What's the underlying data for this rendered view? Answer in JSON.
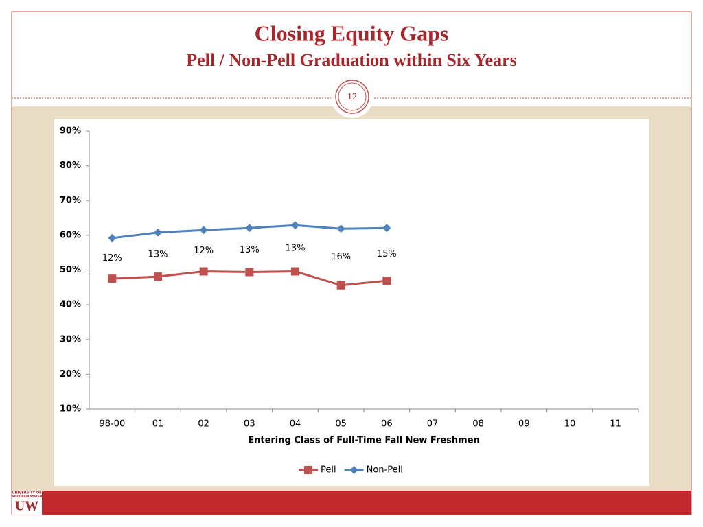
{
  "slide": {
    "number": "12",
    "logo": {
      "top": "UNIVERSITY OF",
      "middle": "WISCONSIN SYSTEM",
      "mark": "UW"
    }
  },
  "chart_data": {
    "type": "line",
    "title": "Closing Equity Gaps",
    "subtitle": "Pell / Non-Pell Graduation within Six Years",
    "x_label": "Entering Class of Full-Time Fall New Freshmen",
    "categories": [
      "98-00",
      "01",
      "02",
      "03",
      "04",
      "05",
      "06",
      "07",
      "08",
      "09",
      "10",
      "11"
    ],
    "series": [
      {
        "name": "Pell",
        "color": "#c0504d",
        "marker": "square",
        "values": [
          47.5,
          48.1,
          49.6,
          49.4,
          49.6,
          45.6,
          46.9,
          null,
          null,
          null,
          null,
          null
        ]
      },
      {
        "name": "Non-Pell",
        "color": "#4f81bd",
        "marker": "diamond",
        "values": [
          59.2,
          60.8,
          61.5,
          62.1,
          62.9,
          61.9,
          62.1,
          null,
          null,
          null,
          null,
          null
        ]
      }
    ],
    "annotations": [
      "12%",
      "13%",
      "12%",
      "13%",
      "13%",
      "16%",
      "15%"
    ],
    "ylim": [
      10,
      90
    ],
    "yticks": [
      {
        "value": 10,
        "label": "10%"
      },
      {
        "value": 20,
        "label": "20%"
      },
      {
        "value": 30,
        "label": "30%"
      },
      {
        "value": 40,
        "label": "40%"
      },
      {
        "value": 50,
        "label": "50%"
      },
      {
        "value": 60,
        "label": "60%"
      },
      {
        "value": 70,
        "label": "70%"
      },
      {
        "value": 80,
        "label": "80%"
      },
      {
        "value": 90,
        "label": "90%"
      }
    ],
    "grid": false,
    "legend": "bottom"
  }
}
